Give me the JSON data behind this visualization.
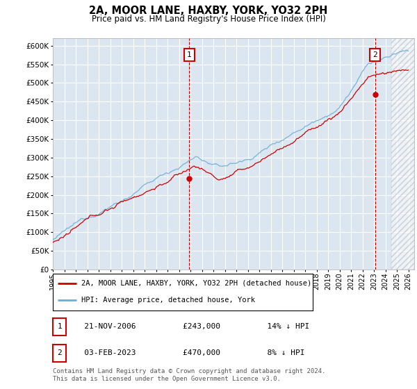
{
  "title": "2A, MOOR LANE, HAXBY, YORK, YO32 2PH",
  "subtitle": "Price paid vs. HM Land Registry's House Price Index (HPI)",
  "ylim": [
    0,
    620000
  ],
  "yticks": [
    0,
    50000,
    100000,
    150000,
    200000,
    250000,
    300000,
    350000,
    400000,
    450000,
    500000,
    550000,
    600000
  ],
  "xmin": 1995.0,
  "xmax": 2026.5,
  "sale1_x": 2006.9,
  "sale1_y": 243000,
  "sale2_x": 2023.09,
  "sale2_y": 470000,
  "hpi_color": "#6BAED6",
  "price_color": "#CC0000",
  "plot_bg": "#DCE6F1",
  "grid_color": "#ffffff",
  "legend_line1": "2A, MOOR LANE, HAXBY, YORK, YO32 2PH (detached house)",
  "legend_line2": "HPI: Average price, detached house, York",
  "table_row1_date": "21-NOV-2006",
  "table_row1_price": "£243,000",
  "table_row1_hpi": "14% ↓ HPI",
  "table_row2_date": "03-FEB-2023",
  "table_row2_price": "£470,000",
  "table_row2_hpi": "8% ↓ HPI",
  "footer": "Contains HM Land Registry data © Crown copyright and database right 2024.\nThis data is licensed under the Open Government Licence v3.0.",
  "hatch_start": 2024.5
}
